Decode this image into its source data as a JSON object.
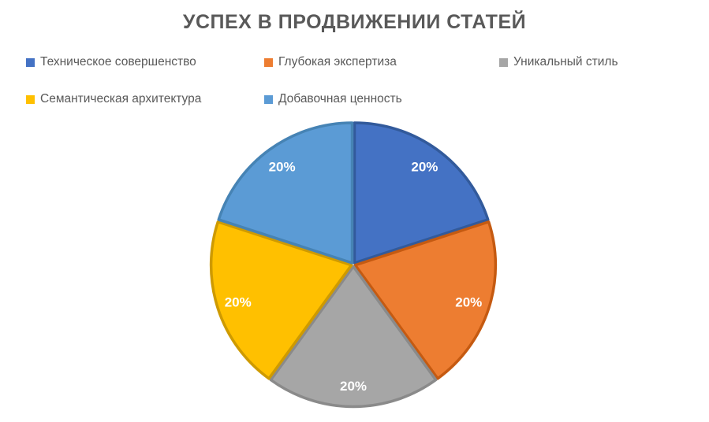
{
  "title": "УСПЕХ В ПРОДВИЖЕНИИ СТАТЕЙ",
  "colors": {
    "background": "#ffffff",
    "title_text": "#595959",
    "legend_text": "#595959",
    "slice_label_text": "#ffffff"
  },
  "chart_data": {
    "type": "pie",
    "title": "УСПЕХ В ПРОДВИЖЕНИИ СТАТЕЙ",
    "legend_position": "top",
    "labels_position": "inside",
    "start_angle_deg": 0,
    "direction": "clockwise",
    "total": 100,
    "slices": [
      {
        "label": "Техническое совершенство",
        "value": 20,
        "display": "20%",
        "fill": "#4472C4",
        "stroke": "#325A9B"
      },
      {
        "label": "Глубокая экспертиза",
        "value": 20,
        "display": "20%",
        "fill": "#ED7D31",
        "stroke": "#C55A11"
      },
      {
        "label": "Уникальный стиль",
        "value": 20,
        "display": "20%",
        "fill": "#A6A6A6",
        "stroke": "#8A8A8A"
      },
      {
        "label": "Семантическая архитектура",
        "value": 20,
        "display": "20%",
        "fill": "#FFC000",
        "stroke": "#CE9A00"
      },
      {
        "label": "Добавочная ценность",
        "value": 20,
        "display": "20%",
        "fill": "#5B9BD5",
        "stroke": "#4683B4"
      }
    ]
  }
}
